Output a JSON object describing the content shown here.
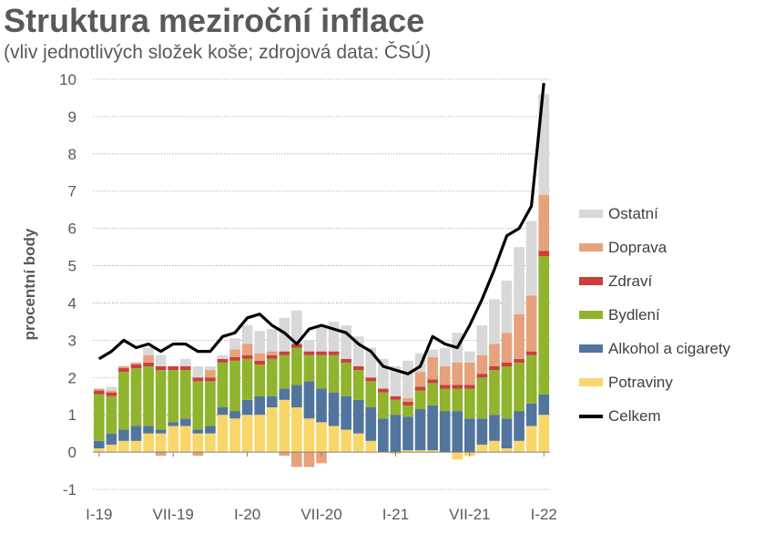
{
  "title": "Struktura meziroční inflace",
  "subtitle": "(vliv jednotlivých složek koše; zdrojová data: ČSÚ)",
  "chart_data": {
    "type": "bar",
    "stacked": true,
    "title": "Struktura meziroční inflace",
    "subtitle": "(vliv jednotlivých složek koše; zdrojová data: ČSÚ)",
    "ylabel": "procentní body",
    "xlabel": "",
    "ylim": [
      -1,
      10
    ],
    "yticks": [
      -1,
      0,
      1,
      2,
      3,
      4,
      5,
      6,
      7,
      8,
      9,
      10
    ],
    "grid": true,
    "legend_position": "right",
    "categories": [
      "I-19",
      "II-19",
      "III-19",
      "IV-19",
      "V-19",
      "VI-19",
      "VII-19",
      "VIII-19",
      "IX-19",
      "X-19",
      "XI-19",
      "XII-19",
      "I-20",
      "II-20",
      "III-20",
      "IV-20",
      "V-20",
      "VI-20",
      "VII-20",
      "VIII-20",
      "IX-20",
      "X-20",
      "XI-20",
      "XII-20",
      "I-21",
      "II-21",
      "III-21",
      "IV-21",
      "V-21",
      "VI-21",
      "VII-21",
      "VIII-21",
      "IX-21",
      "X-21",
      "XI-21",
      "XII-21",
      "I-22"
    ],
    "x_tick_labels": [
      "I-19",
      "VII-19",
      "I-20",
      "VII-20",
      "I-21",
      "VII-21",
      "I-22"
    ],
    "series": [
      {
        "name": "Potraviny",
        "color": "#f8d66a",
        "values": [
          0.1,
          0.2,
          0.3,
          0.3,
          0.5,
          0.5,
          0.7,
          0.7,
          0.5,
          0.5,
          1.0,
          0.9,
          1.0,
          1.0,
          1.2,
          1.4,
          1.2,
          0.9,
          0.8,
          0.7,
          0.6,
          0.5,
          0.3,
          0.0,
          -0.05,
          0.05,
          0.05,
          0.05,
          0.0,
          -0.2,
          -0.1,
          0.2,
          0.3,
          0.1,
          0.3,
          0.7,
          1.0
        ]
      },
      {
        "name": "Alkohol a cigarety",
        "color": "#52759e",
        "values": [
          0.2,
          0.3,
          0.3,
          0.4,
          0.2,
          0.1,
          0.1,
          0.2,
          0.1,
          0.2,
          0.2,
          0.2,
          0.4,
          0.5,
          0.3,
          0.3,
          0.6,
          1.0,
          0.9,
          0.9,
          0.9,
          0.9,
          0.9,
          0.9,
          1.0,
          0.9,
          1.1,
          1.2,
          1.1,
          1.1,
          0.9,
          0.7,
          0.7,
          0.8,
          0.8,
          0.6,
          0.55
        ]
      },
      {
        "name": "Bydlení",
        "color": "#90b42d",
        "values": [
          1.25,
          1.0,
          1.55,
          1.55,
          1.6,
          1.6,
          1.4,
          1.3,
          1.3,
          1.2,
          1.2,
          1.35,
          1.1,
          0.85,
          1.0,
          0.9,
          1.0,
          0.7,
          0.9,
          1.0,
          0.9,
          0.8,
          0.7,
          0.7,
          0.4,
          0.3,
          0.5,
          0.6,
          0.6,
          0.6,
          0.8,
          1.1,
          1.2,
          1.4,
          1.3,
          1.3,
          3.7
        ]
      },
      {
        "name": "Zdraví",
        "color": "#c9403c",
        "values": [
          0.1,
          0.1,
          0.1,
          0.1,
          0.1,
          0.1,
          0.1,
          0.1,
          0.1,
          0.1,
          0.1,
          0.1,
          0.1,
          0.1,
          0.1,
          0.1,
          0.1,
          0.1,
          0.1,
          0.1,
          0.1,
          0.1,
          0.1,
          0.1,
          0.1,
          0.1,
          0.1,
          0.1,
          0.1,
          0.1,
          0.1,
          0.1,
          0.1,
          0.1,
          0.1,
          0.1,
          0.15
        ]
      },
      {
        "name": "Doprava",
        "color": "#e5a27c",
        "values": [
          0.05,
          0.05,
          0.05,
          0.05,
          0.2,
          -0.1,
          0.0,
          0.0,
          -0.1,
          0.2,
          0.0,
          0.2,
          0.3,
          0.2,
          0.1,
          -0.1,
          -0.4,
          -0.4,
          -0.3,
          0.0,
          0.0,
          0.0,
          0.0,
          0.0,
          0.0,
          0.1,
          0.4,
          0.6,
          0.5,
          0.6,
          0.6,
          0.5,
          0.6,
          0.8,
          1.2,
          1.5,
          1.5
        ]
      },
      {
        "name": "Ostatní",
        "color": "#d8d8d8",
        "values": [
          0.0,
          0.1,
          0.0,
          0.0,
          0.2,
          0.3,
          0.0,
          0.2,
          0.3,
          0.1,
          0.1,
          0.3,
          0.5,
          0.6,
          0.6,
          0.9,
          0.9,
          0.3,
          0.7,
          0.8,
          0.9,
          0.8,
          0.8,
          0.8,
          0.8,
          1.0,
          0.5,
          0.2,
          0.5,
          0.8,
          0.3,
          0.8,
          1.2,
          1.4,
          1.8,
          2.0,
          2.7
        ]
      },
      {
        "name": "Celkem",
        "color": "#000000",
        "type": "line",
        "values": [
          2.5,
          2.7,
          3.0,
          2.8,
          2.9,
          2.7,
          2.9,
          2.9,
          2.7,
          2.7,
          3.1,
          3.2,
          3.6,
          3.7,
          3.4,
          3.2,
          2.9,
          3.3,
          3.4,
          3.3,
          3.2,
          2.9,
          2.7,
          2.3,
          2.2,
          2.1,
          2.3,
          3.1,
          2.9,
          2.8,
          3.4,
          4.1,
          4.9,
          5.8,
          6.0,
          6.6,
          9.9
        ]
      }
    ],
    "legend": [
      "Ostatní",
      "Doprava",
      "Zdraví",
      "Bydlení",
      "Alkohol a cigarety",
      "Potraviny",
      "Celkem"
    ]
  }
}
